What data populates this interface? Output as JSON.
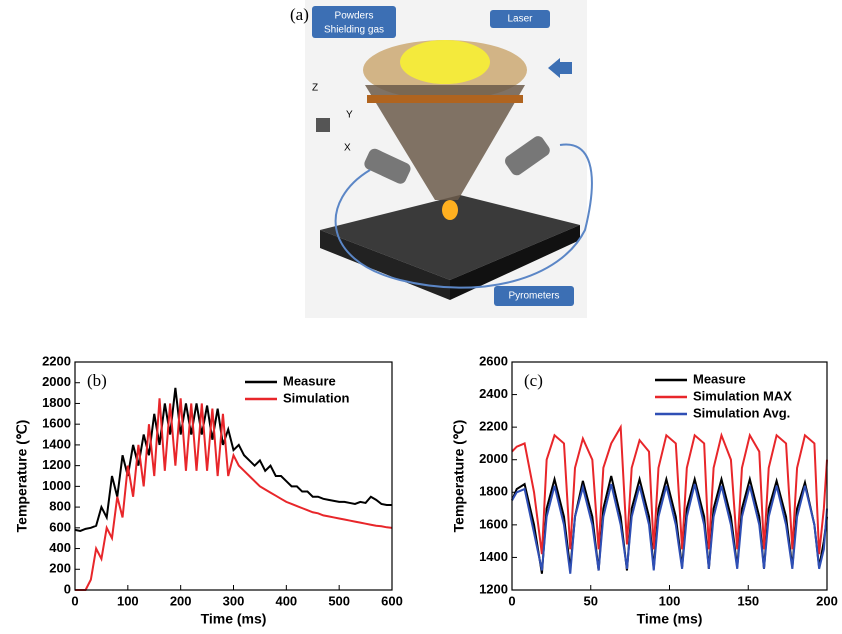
{
  "figure_a": {
    "panel_label": "(a)",
    "callouts": [
      "Powders",
      "Shielding gas",
      "Laser",
      "Pyrometers"
    ],
    "axes": [
      "Z",
      "Y",
      "X"
    ]
  },
  "chart_data": [
    {
      "type": "line",
      "panel_label": "(b)",
      "xlabel": "Time (ms)",
      "ylabel": "Temperature (℃)",
      "xlim": [
        0,
        600
      ],
      "xticks": [
        0,
        100,
        200,
        300,
        400,
        500,
        600
      ],
      "ylim": [
        0,
        2200
      ],
      "yticks": [
        0,
        200,
        400,
        600,
        800,
        1000,
        1200,
        1400,
        1600,
        1800,
        2000,
        2200
      ],
      "x": [
        0,
        10,
        20,
        30,
        40,
        50,
        60,
        70,
        80,
        90,
        100,
        110,
        120,
        130,
        140,
        150,
        160,
        170,
        180,
        190,
        200,
        210,
        220,
        230,
        240,
        250,
        260,
        270,
        280,
        290,
        300,
        310,
        320,
        330,
        340,
        350,
        360,
        370,
        380,
        390,
        400,
        410,
        420,
        430,
        440,
        450,
        460,
        470,
        480,
        490,
        500,
        510,
        520,
        530,
        540,
        550,
        560,
        570,
        580,
        590,
        600
      ],
      "series": [
        {
          "name": "Measure",
          "color": "#000000",
          "values": [
            580,
            570,
            590,
            600,
            620,
            800,
            700,
            1100,
            900,
            1300,
            1100,
            1400,
            1200,
            1500,
            1300,
            1700,
            1400,
            1800,
            1500,
            1950,
            1500,
            1800,
            1500,
            1800,
            1500,
            1780,
            1450,
            1750,
            1400,
            1550,
            1350,
            1400,
            1300,
            1250,
            1200,
            1250,
            1150,
            1200,
            1100,
            1100,
            1050,
            1000,
            1000,
            950,
            950,
            900,
            900,
            880,
            870,
            860,
            850,
            850,
            840,
            830,
            850,
            840,
            900,
            870,
            830,
            820,
            820
          ]
        },
        {
          "name": "Simulation",
          "color": "#e8262a",
          "values": [
            0,
            0,
            0,
            100,
            400,
            300,
            600,
            500,
            900,
            700,
            1200,
            900,
            1400,
            1000,
            1600,
            1100,
            1850,
            1150,
            1800,
            1200,
            1850,
            1150,
            1800,
            1150,
            1800,
            1150,
            1750,
            1100,
            1700,
            1100,
            1300,
            1200,
            1150,
            1100,
            1050,
            1000,
            970,
            940,
            910,
            880,
            850,
            830,
            810,
            790,
            770,
            750,
            740,
            720,
            710,
            700,
            690,
            680,
            670,
            660,
            650,
            640,
            630,
            620,
            615,
            605,
            600
          ]
        }
      ]
    },
    {
      "type": "line",
      "panel_label": "(c)",
      "xlabel": "Time (ms)",
      "ylabel": "Temperature (℃)",
      "xlim": [
        0,
        200
      ],
      "xticks": [
        0,
        50,
        100,
        150,
        200
      ],
      "ylim": [
        1200,
        2600
      ],
      "yticks": [
        1200,
        1400,
        1600,
        1800,
        2000,
        2200,
        2400,
        2600
      ],
      "x": [
        0,
        3,
        8,
        14,
        19,
        22,
        27,
        33,
        37,
        40,
        45,
        51,
        55,
        58,
        63,
        69,
        73,
        76,
        81,
        87,
        90,
        93,
        98,
        104,
        108,
        111,
        116,
        122,
        125,
        128,
        133,
        139,
        143,
        146,
        151,
        157,
        160,
        163,
        168,
        174,
        178,
        181,
        186,
        192,
        195,
        198,
        200
      ],
      "series": [
        {
          "name": "Measure",
          "color": "#000000",
          "values": [
            1750,
            1820,
            1850,
            1600,
            1300,
            1700,
            1880,
            1650,
            1330,
            1650,
            1870,
            1650,
            1320,
            1700,
            1900,
            1650,
            1320,
            1700,
            1880,
            1650,
            1330,
            1700,
            1880,
            1650,
            1340,
            1700,
            1880,
            1650,
            1330,
            1700,
            1880,
            1650,
            1340,
            1700,
            1880,
            1650,
            1330,
            1700,
            1870,
            1650,
            1340,
            1700,
            1860,
            1600,
            1340,
            1500,
            1650
          ]
        },
        {
          "name": "Simulation MAX",
          "color": "#e8262a",
          "values": [
            2050,
            2080,
            2100,
            1800,
            1420,
            2000,
            2150,
            2100,
            1450,
            1950,
            2130,
            2000,
            1450,
            1950,
            2100,
            2200,
            1480,
            1950,
            2120,
            2050,
            1450,
            1950,
            2150,
            2100,
            1450,
            1950,
            2150,
            2100,
            1450,
            1950,
            2150,
            2000,
            1450,
            1950,
            2150,
            2050,
            1450,
            1950,
            2150,
            2100,
            1450,
            1950,
            2150,
            2100,
            1420,
            1700,
            2000
          ]
        },
        {
          "name": "Simulation Avg.",
          "color": "#2f4fb5",
          "values": [
            1750,
            1800,
            1820,
            1550,
            1320,
            1650,
            1840,
            1600,
            1300,
            1650,
            1830,
            1600,
            1320,
            1650,
            1850,
            1600,
            1330,
            1650,
            1840,
            1600,
            1320,
            1650,
            1840,
            1600,
            1330,
            1650,
            1850,
            1600,
            1330,
            1650,
            1840,
            1600,
            1330,
            1650,
            1840,
            1600,
            1330,
            1650,
            1840,
            1600,
            1330,
            1650,
            1840,
            1600,
            1330,
            1450,
            1700
          ]
        }
      ]
    }
  ]
}
